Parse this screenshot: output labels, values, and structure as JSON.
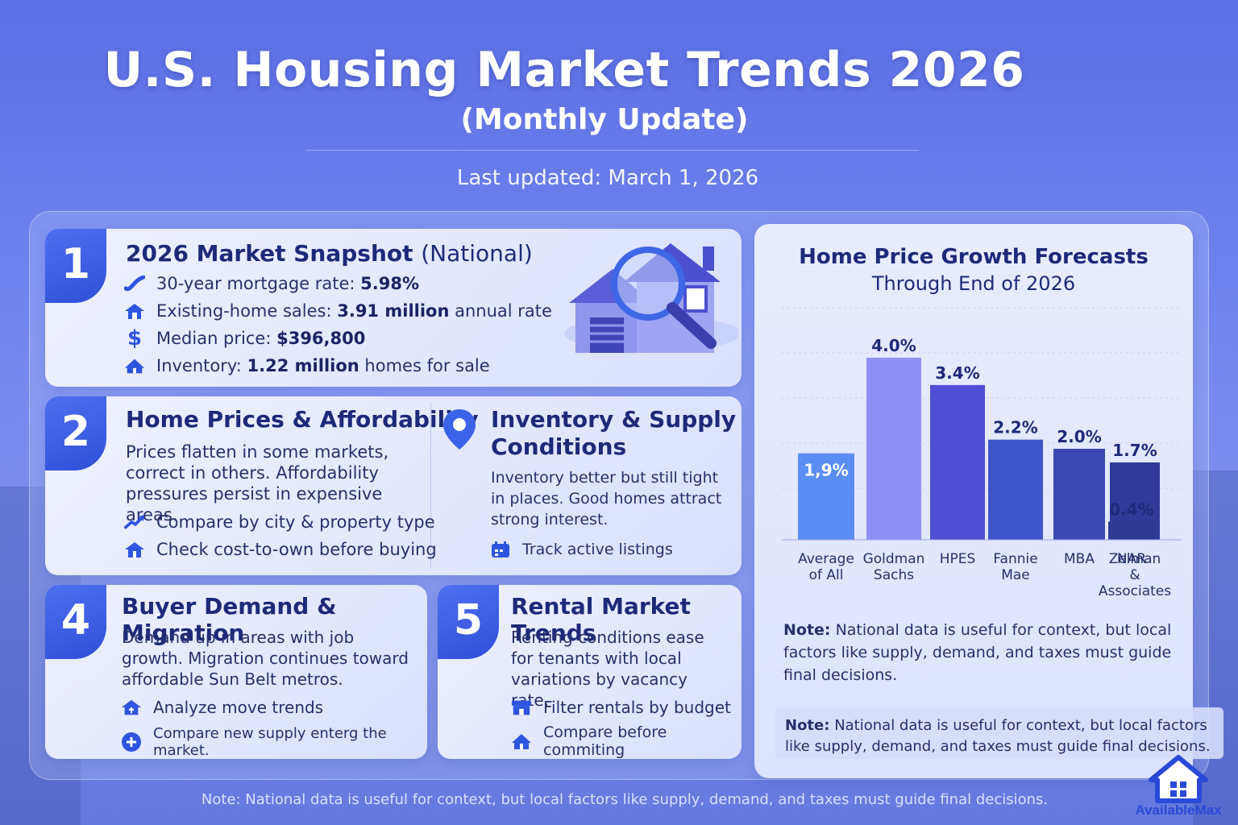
{
  "header": {
    "title": "U.S. Housing Market Trends 2026",
    "subtitle": "(Monthly Update)",
    "last_updated": "Last updated: March 1, 2026"
  },
  "snapshot": {
    "number": "1",
    "title_main": "2026 Market Snapshot",
    "title_suffix": "(National)",
    "items": [
      {
        "icon": "trend-line-icon",
        "label": "30-year mortgage rate:",
        "value": "5.98%",
        "tail": ""
      },
      {
        "icon": "house-icon",
        "label": "Existing-home sales:",
        "value": "3.91 million",
        "tail": "annual rate"
      },
      {
        "icon": "dollar-icon",
        "label": "Median price:",
        "value": "$396,800",
        "tail": ""
      },
      {
        "icon": "home-stock-icon",
        "label": "Inventory:",
        "value": "1.22 million",
        "tail": "homes for sale"
      }
    ]
  },
  "prices": {
    "number": "2",
    "title": "Home Prices & Affordability",
    "text": "Prices flatten in some markets, correct in others. Affordability pressures persist in expensive areas.",
    "actions": [
      {
        "icon": "trend-up-icon",
        "label": "Compare by city & property type"
      },
      {
        "icon": "house-icon",
        "label": "Check cost-to-own before buying"
      }
    ]
  },
  "inventory": {
    "title_line1": "Inventory & Supply",
    "title_line2": "Conditions",
    "text": "Inventory better but still tight in places. Good homes attract strong interest.",
    "action": {
      "icon": "calendar-icon",
      "label": "Track active listings"
    }
  },
  "demand": {
    "number": "4",
    "title": "Buyer Demand & Migration",
    "text": "Demand up in areas with job growth. Migration continues toward affordable Sun Belt metros.",
    "actions": [
      {
        "icon": "home-arrow-icon",
        "label": "Analyze move trends"
      },
      {
        "icon": "plus-circle-icon",
        "label": "Compare new supply enterg the market."
      }
    ]
  },
  "rental": {
    "number": "5",
    "title": "Rental Market Trends",
    "text": "Renting conditions ease for tenants with local variations by vacancy rate.",
    "actions": [
      {
        "icon": "storefront-icon",
        "label": "Filter rentals by budget"
      },
      {
        "icon": "house-icon",
        "label": "Compare before commiting"
      }
    ]
  },
  "chart_data": {
    "type": "bar",
    "title": "Home Price Growth Forecasts",
    "subtitle": "Through End of 2026",
    "categories": [
      "Average of All",
      "Goldman Sachs",
      "HPES",
      "Fannie Mae",
      "MBA",
      "Zelman & Associates",
      "NAR"
    ],
    "category_lines": [
      [
        "Average",
        "of All"
      ],
      [
        "Goldman",
        "Sachs"
      ],
      [
        "HPES"
      ],
      [
        "Fannie",
        "Mae"
      ],
      [
        "MBA"
      ],
      [
        "Zelman",
        "&",
        "Associates"
      ],
      [
        "NAR"
      ]
    ],
    "values": [
      1.9,
      4.0,
      3.4,
      2.2,
      2.0,
      1.7,
      0.4
    ],
    "data_labels": [
      "1,9%",
      "4.0%",
      "3.4%",
      "2.2%",
      "2.0%",
      "1.7%",
      "0.4%"
    ],
    "colors": [
      "#5a8ef2",
      "#8f90f5",
      "#4f4fd6",
      "#3f56c8",
      "#3c48b4",
      "#2f3a9a",
      "#2c3a96"
    ],
    "grid": true,
    "legend": "none"
  },
  "notes": {
    "chart_note_label": "Note:",
    "chart_note_text": "National data is useful for context, but local factors like supply, demand, and taxes must guide final decisions.",
    "box_note_label": "Note:",
    "box_note_text": "National data is useful for context, but local factors like supply, demand, and taxes must guide final decisions.",
    "footer_label": "Note:",
    "footer_text": "National data is useful for context, but local factors like supply, demand, and taxes must guide final decisions."
  },
  "brand": {
    "name": "AvailableMax",
    "color": "#2a49d8"
  }
}
